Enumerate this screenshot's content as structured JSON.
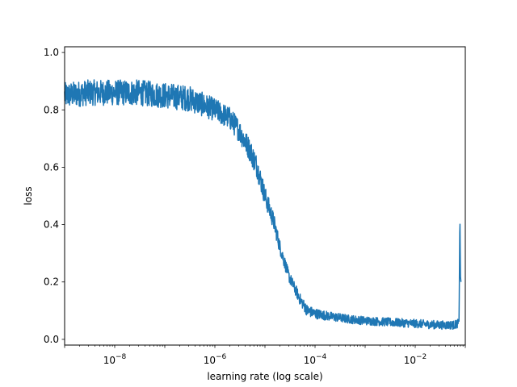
{
  "chart_data": {
    "type": "line",
    "title": "",
    "xlabel": "learning rate (log scale)",
    "ylabel": "loss",
    "x_scale": "log",
    "xlim": [
      1e-09,
      0.1
    ],
    "ylim": [
      -0.02,
      1.02
    ],
    "x_ticks": [
      {
        "value": 1e-08,
        "base": "10",
        "exp": "−8"
      },
      {
        "value": 1e-06,
        "base": "10",
        "exp": "−6"
      },
      {
        "value": 0.0001,
        "base": "10",
        "exp": "−4"
      },
      {
        "value": 0.01,
        "base": "10",
        "exp": "−2"
      }
    ],
    "y_ticks": [
      {
        "value": 0.0,
        "label": "0.0"
      },
      {
        "value": 0.2,
        "label": "0.2"
      },
      {
        "value": 0.4,
        "label": "0.4"
      },
      {
        "value": 0.6,
        "label": "0.6"
      },
      {
        "value": 0.8,
        "label": "0.8"
      },
      {
        "value": 1.0,
        "label": "1.0"
      }
    ],
    "grid": false,
    "legend": "none",
    "series_color": "#1f77b4",
    "series": [
      {
        "x": [
          1e-09,
          3e-09,
          1e-08,
          3e-08,
          1e-07,
          3e-07,
          1e-06,
          2e-06,
          3e-06,
          5e-06,
          7e-06,
          1e-05,
          1.5e-05,
          2e-05,
          3e-05,
          5e-05,
          7e-05,
          0.0001,
          0.0002,
          0.0005,
          0.001,
          0.003,
          0.01,
          0.03,
          0.06,
          0.07,
          0.075,
          0.078,
          0.08,
          0.082
        ],
        "y": [
          0.85,
          0.86,
          0.86,
          0.86,
          0.85,
          0.84,
          0.8,
          0.77,
          0.73,
          0.66,
          0.6,
          0.5,
          0.41,
          0.32,
          0.22,
          0.14,
          0.1,
          0.09,
          0.08,
          0.07,
          0.065,
          0.06,
          0.055,
          0.05,
          0.05,
          0.055,
          0.06,
          0.44,
          0.22,
          0.2
        ],
        "noise": [
          0.045,
          0.045,
          0.045,
          0.045,
          0.045,
          0.045,
          0.04,
          0.04,
          0.04,
          0.04,
          0.04,
          0.035,
          0.03,
          0.025,
          0.02,
          0.02,
          0.02,
          0.018,
          0.016,
          0.015,
          0.015,
          0.015,
          0.015,
          0.015,
          0.015,
          0.015,
          0.01,
          0.0,
          0.0,
          0.0
        ]
      }
    ]
  }
}
